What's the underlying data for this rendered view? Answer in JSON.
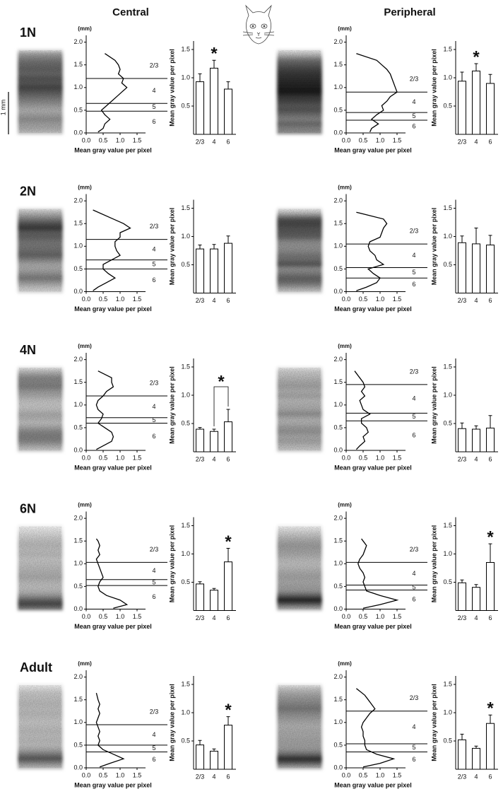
{
  "column_titles": [
    "Central",
    "Peripheral"
  ],
  "row_labels": [
    "1N",
    "2N",
    "4N",
    "6N",
    "Adult"
  ],
  "scale_bar": "1 mm",
  "chart_data": [
    {
      "type": "profile",
      "x": [
        1.75,
        1.6,
        1.5,
        1.4,
        1.3,
        1.2,
        1.1,
        1.0,
        0.9,
        0.8,
        0.7,
        0.6,
        0.5,
        0.4,
        0.3,
        0.2,
        0.1,
        0.02
      ],
      "values": [
        0.55,
        0.85,
        0.95,
        1.0,
        0.95,
        1.1,
        1.05,
        1.2,
        1.05,
        0.9,
        0.75,
        0.6,
        0.45,
        0.55,
        0.7,
        0.55,
        0.5,
        0.35
      ],
      "boundaries": [
        1.2,
        0.65,
        0.48
      ],
      "layer_labels": [
        "2/3",
        "4",
        "5",
        "6"
      ],
      "xlabel": "(mm)",
      "ylabel": "Mean gray value per pixel",
      "xlim": [
        0,
        2.15
      ],
      "xticks": [
        {
          "value": 0,
          "label": "0.0"
        },
        0.5,
        {
          "value": 1,
          "label": "1.0"
        },
        1.5,
        {
          "value": 2,
          "label": "2.0"
        }
      ],
      "ylim": [
        0,
        1.75
      ],
      "yticks": [
        {
          "value": 0,
          "label": "0.0"
        },
        0.5,
        {
          "value": 1,
          "label": "1.0"
        },
        1.5
      ]
    },
    {
      "type": "bar",
      "categories": [
        "2/3",
        "4",
        "6"
      ],
      "values": [
        0.93,
        1.17,
        0.8
      ],
      "errors": [
        0.14,
        0.14,
        0.13
      ],
      "color": "#ffffff",
      "ylabel": "Mean gray value per pixel",
      "ylim": [
        0,
        1.65
      ],
      "yticks": [
        0.5,
        {
          "value": 1,
          "label": "1.0"
        },
        1.5
      ],
      "significance": {
        "label": "*",
        "categories": [
          "4"
        ]
      }
    },
    {
      "type": "profile",
      "x": [
        1.75,
        1.6,
        1.5,
        1.4,
        1.3,
        1.2,
        1.1,
        1.0,
        0.9,
        0.8,
        0.7,
        0.6,
        0.5,
        0.4,
        0.3,
        0.2,
        0.1,
        0.02
      ],
      "values": [
        0.3,
        0.9,
        1.05,
        1.2,
        1.3,
        1.35,
        1.4,
        1.45,
        1.5,
        1.3,
        1.2,
        1.05,
        1.1,
        0.9,
        0.75,
        0.95,
        0.75,
        0.7
      ],
      "boundaries": [
        0.9,
        0.45,
        0.28
      ],
      "layer_labels": [
        "2/3",
        "4",
        "5",
        "6"
      ],
      "xlabel": "(mm)",
      "ylabel": "Mean gray value per pixel",
      "xlim": [
        0,
        2.15
      ],
      "xticks": [
        {
          "value": 0,
          "label": "0.0"
        },
        0.5,
        {
          "value": 1,
          "label": "1.0"
        },
        1.5,
        {
          "value": 2,
          "label": "2.0"
        }
      ],
      "ylim": [
        0,
        1.75
      ],
      "yticks": [
        {
          "value": 0,
          "label": "0.0"
        },
        0.5,
        {
          "value": 1,
          "label": "1.0"
        },
        1.5
      ]
    },
    {
      "type": "bar",
      "categories": [
        "2/3",
        "4",
        "6"
      ],
      "values": [
        0.94,
        1.12,
        0.9
      ],
      "errors": [
        0.16,
        0.13,
        0.16
      ],
      "color": "#ffffff",
      "ylabel": "Mean gray value per pixel",
      "ylim": [
        0,
        1.65
      ],
      "yticks": [
        0.5,
        {
          "value": 1,
          "label": "1.0"
        },
        1.5
      ],
      "significance": {
        "label": "*",
        "categories": [
          "4"
        ]
      }
    },
    {
      "type": "profile",
      "x": [
        1.8,
        1.6,
        1.5,
        1.4,
        1.3,
        1.2,
        1.1,
        1.0,
        0.9,
        0.8,
        0.7,
        0.6,
        0.5,
        0.4,
        0.3,
        0.2,
        0.1,
        0.02
      ],
      "values": [
        0.2,
        0.8,
        1.1,
        1.3,
        1.0,
        1.0,
        0.85,
        0.85,
        0.9,
        1.0,
        0.75,
        0.5,
        0.5,
        0.65,
        0.85,
        0.6,
        0.35,
        0.2
      ],
      "boundaries": [
        1.15,
        0.7,
        0.5
      ],
      "layer_labels": [
        "2/3",
        "4",
        "5",
        "6"
      ],
      "xlabel": "(mm)",
      "ylabel": "Mean gray value per pixel",
      "xlim": [
        0,
        2.15
      ],
      "xticks": [
        {
          "value": 0,
          "label": "0.0"
        },
        0.5,
        {
          "value": 1,
          "label": "1.0"
        },
        1.5,
        {
          "value": 2,
          "label": "2.0"
        }
      ],
      "ylim": [
        0,
        1.75
      ],
      "yticks": [
        {
          "value": 0,
          "label": "0.0"
        },
        0.5,
        {
          "value": 1,
          "label": "1.0"
        },
        1.5
      ]
    },
    {
      "type": "bar",
      "categories": [
        "2/3",
        "4",
        "6"
      ],
      "values": [
        0.78,
        0.78,
        0.88
      ],
      "errors": [
        0.07,
        0.08,
        0.13
      ],
      "color": "#ffffff",
      "ylabel": "Mean gray value per pixel",
      "ylim": [
        0,
        1.65
      ],
      "yticks": [
        0.5,
        {
          "value": 1,
          "label": "1.0"
        },
        1.5
      ]
    },
    {
      "type": "profile",
      "x": [
        1.75,
        1.6,
        1.5,
        1.4,
        1.3,
        1.2,
        1.1,
        1.0,
        0.9,
        0.8,
        0.7,
        0.6,
        0.5,
        0.4,
        0.3,
        0.2,
        0.1,
        0.02
      ],
      "values": [
        0.3,
        1.1,
        1.2,
        1.1,
        1.05,
        1.0,
        0.7,
        0.65,
        0.7,
        0.85,
        0.9,
        1.1,
        0.65,
        0.8,
        1.0,
        0.9,
        0.6,
        0.3
      ],
      "boundaries": [
        1.05,
        0.53,
        0.3
      ],
      "layer_labels": [
        "2/3",
        "4",
        "5",
        "6"
      ],
      "xlabel": "(mm)",
      "ylabel": "Mean gray value per pixel",
      "xlim": [
        0,
        2.15
      ],
      "xticks": [
        {
          "value": 0,
          "label": "0.0"
        },
        0.5,
        {
          "value": 1,
          "label": "1.0"
        },
        1.5,
        {
          "value": 2,
          "label": "2.0"
        }
      ],
      "ylim": [
        0,
        1.75
      ],
      "yticks": [
        {
          "value": 0,
          "label": "0.0"
        },
        0.5,
        {
          "value": 1,
          "label": "1.0"
        },
        1.5
      ]
    },
    {
      "type": "bar",
      "categories": [
        "2/3",
        "4",
        "6"
      ],
      "values": [
        0.89,
        0.87,
        0.85
      ],
      "errors": [
        0.12,
        0.28,
        0.17
      ],
      "color": "#ffffff",
      "ylabel": "Mean gray value per pixel",
      "ylim": [
        0,
        1.65
      ],
      "yticks": [
        0.5,
        {
          "value": 1,
          "label": "1.0"
        },
        1.5
      ]
    },
    {
      "type": "profile",
      "x": [
        1.75,
        1.6,
        1.5,
        1.4,
        1.3,
        1.2,
        1.1,
        1.0,
        0.9,
        0.8,
        0.7,
        0.6,
        0.5,
        0.4,
        0.3,
        0.2,
        0.1,
        0.02
      ],
      "values": [
        0.35,
        0.75,
        0.75,
        0.8,
        0.6,
        0.5,
        0.35,
        0.3,
        0.35,
        0.5,
        0.45,
        0.35,
        0.55,
        0.75,
        0.8,
        0.75,
        0.5,
        0.3
      ],
      "boundaries": [
        1.2,
        0.72,
        0.6
      ],
      "layer_labels": [
        "2/3",
        "4",
        "5",
        "6"
      ],
      "xlabel": "(mm)",
      "ylabel": "Mean gray value per pixel",
      "xlim": [
        0,
        2.15
      ],
      "xticks": [
        {
          "value": 0,
          "label": "0.0"
        },
        0.5,
        {
          "value": 1,
          "label": "1.0"
        },
        1.5,
        {
          "value": 2,
          "label": "2.0"
        }
      ],
      "ylim": [
        0,
        1.75
      ],
      "yticks": [
        {
          "value": 0,
          "label": "0.0"
        },
        0.5,
        {
          "value": 1,
          "label": "1.0"
        },
        1.5
      ]
    },
    {
      "type": "bar",
      "categories": [
        "2/3",
        "4",
        "6"
      ],
      "values": [
        0.4,
        0.36,
        0.53
      ],
      "errors": [
        0.03,
        0.04,
        0.22
      ],
      "color": "#ffffff",
      "ylabel": "Mean gray value per pixel",
      "ylim": [
        0,
        1.65
      ],
      "yticks": [
        0.5,
        {
          "value": 1,
          "label": "1.0"
        },
        1.5
      ],
      "significance": {
        "label": "*",
        "categories": [
          "4",
          "6"
        ]
      }
    },
    {
      "type": "profile",
      "x": [
        1.75,
        1.6,
        1.5,
        1.4,
        1.3,
        1.2,
        1.1,
        1.0,
        0.9,
        0.8,
        0.7,
        0.6,
        0.5,
        0.4,
        0.3,
        0.2,
        0.1,
        0.02
      ],
      "values": [
        0.25,
        0.4,
        0.5,
        0.55,
        0.45,
        0.55,
        0.4,
        0.45,
        0.5,
        0.7,
        0.45,
        0.45,
        0.6,
        0.65,
        0.5,
        0.55,
        0.4,
        0.3
      ],
      "boundaries": [
        1.45,
        0.82,
        0.65
      ],
      "layer_labels": [
        "2/3",
        "4",
        "5",
        "6"
      ],
      "xlabel": "(mm)",
      "ylabel": "Mean gray value per pixel",
      "xlim": [
        0,
        2.15
      ],
      "xticks": [
        {
          "value": 0,
          "label": "0.0"
        },
        0.5,
        {
          "value": 1,
          "label": "1.0"
        },
        1.5,
        {
          "value": 2,
          "label": "2.0"
        }
      ],
      "ylim": [
        0,
        1.75
      ],
      "yticks": [
        {
          "value": 0,
          "label": "0.0"
        },
        0.5,
        {
          "value": 1,
          "label": "1.0"
        },
        1.5
      ]
    },
    {
      "type": "bar",
      "categories": [
        "2/3",
        "4",
        "6"
      ],
      "values": [
        0.41,
        0.4,
        0.42
      ],
      "errors": [
        0.1,
        0.06,
        0.22
      ],
      "color": "#ffffff",
      "ylabel": "Mean gray value per pixel",
      "ylim": [
        0,
        1.65
      ],
      "yticks": [
        0.5,
        {
          "value": 1,
          "label": "1.0"
        },
        1.5
      ]
    },
    {
      "type": "profile",
      "x": [
        1.75,
        1.55,
        1.5,
        1.4,
        1.3,
        1.2,
        1.1,
        1.0,
        0.9,
        0.8,
        0.7,
        0.6,
        0.5,
        0.4,
        0.3,
        0.2,
        0.1,
        0.02
      ],
      "values": [
        null,
        0.3,
        0.35,
        0.4,
        0.35,
        0.4,
        0.3,
        0.35,
        0.4,
        0.45,
        0.5,
        0.4,
        0.35,
        0.4,
        0.6,
        1.0,
        1.2,
        0.8
      ],
      "boundaries": [
        1.03,
        0.65,
        0.52
      ],
      "layer_labels": [
        "2/3",
        "4",
        "5",
        "6"
      ],
      "xlabel": "(mm)",
      "ylabel": "Mean gray value per pixel",
      "xlim": [
        0,
        2.15
      ],
      "xticks": [
        {
          "value": 0,
          "label": "0.0"
        },
        0.5,
        {
          "value": 1,
          "label": "1.0"
        },
        1.5,
        {
          "value": 2,
          "label": "2.0"
        }
      ],
      "ylim": [
        0,
        1.75
      ],
      "yticks": [
        {
          "value": 0,
          "label": "0.0"
        },
        0.5,
        {
          "value": 1,
          "label": "1.0"
        },
        1.5
      ]
    },
    {
      "type": "bar",
      "categories": [
        "2/3",
        "4",
        "6"
      ],
      "values": [
        0.47,
        0.36,
        0.86
      ],
      "errors": [
        0.04,
        0.03,
        0.24
      ],
      "color": "#ffffff",
      "ylabel": "Mean gray value per pixel",
      "ylim": [
        0,
        1.65
      ],
      "yticks": [
        0.5,
        {
          "value": 1,
          "label": "1.0"
        },
        1.5
      ],
      "significance": {
        "label": "*",
        "categories": [
          "6"
        ]
      }
    },
    {
      "type": "profile",
      "x": [
        1.75,
        1.55,
        1.5,
        1.4,
        1.3,
        1.2,
        1.1,
        1.0,
        0.9,
        0.8,
        0.7,
        0.6,
        0.5,
        0.4,
        0.3,
        0.2,
        0.1,
        0.02
      ],
      "values": [
        null,
        0.45,
        0.5,
        0.6,
        0.55,
        0.5,
        0.4,
        0.35,
        0.4,
        0.5,
        0.55,
        0.5,
        0.55,
        0.6,
        1.0,
        1.5,
        1.0,
        0.5
      ],
      "boundaries": [
        1.03,
        0.53,
        0.42
      ],
      "layer_labels": [
        "2/3",
        "4",
        "5",
        "6"
      ],
      "xlabel": "(mm)",
      "ylabel": "Mean gray value per pixel",
      "xlim": [
        0,
        2.15
      ],
      "xticks": [
        {
          "value": 0,
          "label": "0.0"
        },
        0.5,
        {
          "value": 1,
          "label": "1.0"
        },
        1.5,
        {
          "value": 2,
          "label": "2.0"
        }
      ],
      "ylim": [
        0,
        1.75
      ],
      "yticks": [
        {
          "value": 0,
          "label": "0.0"
        },
        0.5,
        {
          "value": 1,
          "label": "1.0"
        },
        1.5
      ]
    },
    {
      "type": "bar",
      "categories": [
        "2/3",
        "4",
        "6"
      ],
      "values": [
        0.49,
        0.41,
        0.85
      ],
      "errors": [
        0.05,
        0.05,
        0.33
      ],
      "color": "#ffffff",
      "ylabel": "Mean gray value per pixel",
      "ylim": [
        0,
        1.65
      ],
      "yticks": [
        0.5,
        {
          "value": 1,
          "label": "1.0"
        },
        1.5
      ],
      "significance": {
        "label": "*",
        "categories": [
          "6"
        ]
      }
    },
    {
      "type": "profile",
      "x": [
        1.75,
        1.65,
        1.5,
        1.4,
        1.3,
        1.2,
        1.1,
        1.0,
        0.9,
        0.8,
        0.7,
        0.6,
        0.5,
        0.4,
        0.3,
        0.2,
        0.1,
        0.02
      ],
      "values": [
        null,
        0.3,
        0.35,
        0.4,
        0.35,
        0.4,
        0.35,
        0.3,
        0.35,
        0.4,
        0.35,
        0.4,
        0.35,
        0.5,
        0.8,
        1.1,
        0.7,
        0.4
      ],
      "boundaries": [
        0.95,
        0.5,
        0.35
      ],
      "layer_labels": [
        "2/3",
        "4",
        "5",
        "6"
      ],
      "xlabel": "(mm)",
      "ylabel": "Mean gray value per pixel",
      "xlim": [
        0,
        2.15
      ],
      "xticks": [
        {
          "value": 0,
          "label": "0.0"
        },
        0.5,
        {
          "value": 1,
          "label": "1.0"
        },
        1.5,
        {
          "value": 2,
          "label": "2.0"
        }
      ],
      "ylim": [
        0,
        1.75
      ],
      "yticks": [
        {
          "value": 0,
          "label": "0.0"
        },
        0.5,
        {
          "value": 1,
          "label": "1.0"
        },
        1.5
      ]
    },
    {
      "type": "bar",
      "categories": [
        "2/3",
        "4",
        "6"
      ],
      "values": [
        0.43,
        0.32,
        0.78
      ],
      "errors": [
        0.08,
        0.04,
        0.15
      ],
      "color": "#ffffff",
      "ylabel": "Mean gray value per pixel",
      "ylim": [
        0,
        1.65
      ],
      "yticks": [
        0.5,
        {
          "value": 1,
          "label": "1.0"
        },
        1.5
      ],
      "significance": {
        "label": "*",
        "categories": [
          "6"
        ]
      }
    },
    {
      "type": "profile",
      "x": [
        1.75,
        1.6,
        1.5,
        1.4,
        1.3,
        1.2,
        1.1,
        1.0,
        0.9,
        0.8,
        0.7,
        0.6,
        0.5,
        0.4,
        0.3,
        0.2,
        0.1,
        0.02
      ],
      "values": [
        0.3,
        0.55,
        0.65,
        0.75,
        0.85,
        0.7,
        0.6,
        0.5,
        0.45,
        0.5,
        0.5,
        0.55,
        0.55,
        0.6,
        0.9,
        1.4,
        1.0,
        0.5
      ],
      "boundaries": [
        1.25,
        0.53,
        0.35
      ],
      "layer_labels": [
        "2/3",
        "4",
        "5",
        "6"
      ],
      "xlabel": "(mm)",
      "ylabel": "Mean gray value per pixel",
      "xlim": [
        0,
        2.15
      ],
      "xticks": [
        {
          "value": 0,
          "label": "0.0"
        },
        0.5,
        {
          "value": 1,
          "label": "1.0"
        },
        1.5,
        {
          "value": 2,
          "label": "2.0"
        }
      ],
      "ylim": [
        0,
        1.75
      ],
      "yticks": [
        {
          "value": 0,
          "label": "0.0"
        },
        0.5,
        {
          "value": 1,
          "label": "1.0"
        },
        1.5
      ]
    },
    {
      "type": "bar",
      "categories": [
        "2/3",
        "4",
        "6"
      ],
      "values": [
        0.52,
        0.37,
        0.81
      ],
      "errors": [
        0.1,
        0.04,
        0.15
      ],
      "color": "#ffffff",
      "ylabel": "Mean gray value per pixel",
      "ylim": [
        0,
        1.65
      ],
      "yticks": [
        0.5,
        {
          "value": 1,
          "label": "1.0"
        },
        1.5
      ],
      "significance": {
        "label": "*",
        "categories": [
          "6"
        ]
      }
    }
  ]
}
